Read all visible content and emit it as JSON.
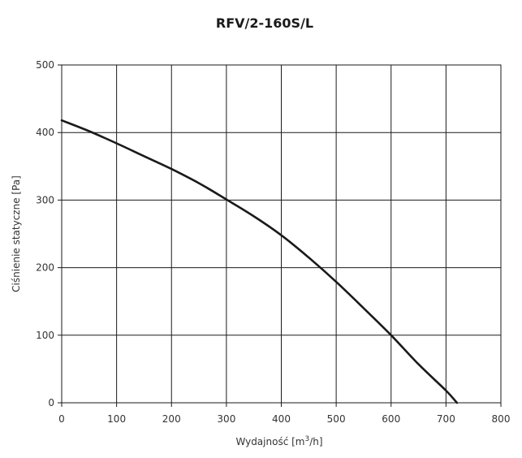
{
  "chart_data": {
    "type": "line",
    "title": "RFV/2-160S/L",
    "xlabel": "Wydajność [m3/h]",
    "xlabel_parts": {
      "before": "Wydajność [m",
      "sup": "3",
      "after": "/h]"
    },
    "ylabel": "Ciśnienie statyczne [Pa]",
    "xlim": [
      0,
      800
    ],
    "ylim": [
      0,
      500
    ],
    "xticks": [
      0,
      100,
      200,
      300,
      400,
      500,
      600,
      700,
      800
    ],
    "yticks": [
      0,
      100,
      200,
      300,
      400,
      500
    ],
    "grid": true,
    "series": [
      {
        "color": "#1a1a1a",
        "x": [
          0,
          50,
          100,
          150,
          200,
          250,
          300,
          350,
          400,
          450,
          500,
          550,
          600,
          650,
          700,
          720
        ],
        "y": [
          418,
          402,
          384,
          365,
          346,
          325,
          301,
          276,
          248,
          215,
          179,
          140,
          100,
          57,
          18,
          0
        ]
      }
    ]
  }
}
